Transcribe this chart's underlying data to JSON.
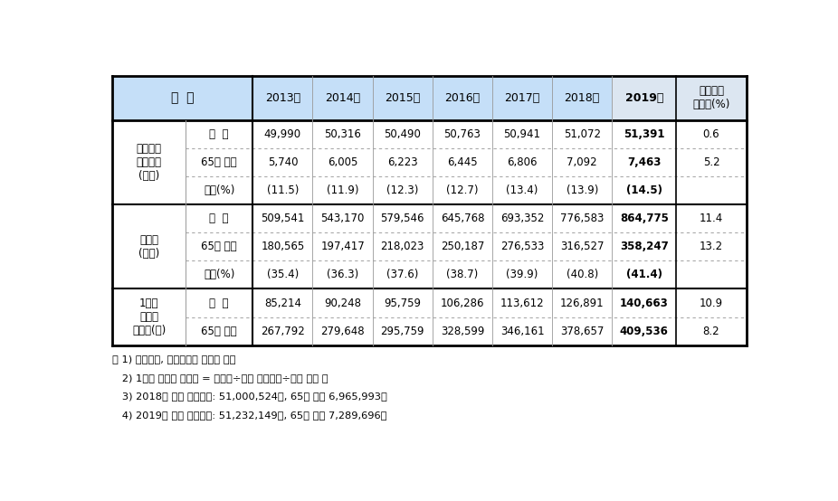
{
  "header_bg": "#c5dff8",
  "header_last_bg": "#dce6f1",
  "body_bg": "#ffffff",
  "thick_line_color": "#000000",
  "thin_line_color": "#aaaaaa",
  "dotted_line_color": "#888888",
  "col_headers": [
    "구  분",
    "",
    "2013년",
    "2014년",
    "2015년",
    "2016년",
    "2017년",
    "2018년",
    "2019년",
    "전년대비\n증감률(%)"
  ],
  "year_labels": [
    "2013년",
    "2014년",
    "2015년",
    "2016년",
    "2017년",
    "2018년",
    "2019년"
  ],
  "sections": [
    {
      "label": "건강보험\n적용인구\n(천명)",
      "rows": [
        {
          "sublabel": "전  체",
          "values": [
            "49,990",
            "50,316",
            "50,490",
            "50,763",
            "50,941",
            "51,072",
            "51,391",
            "0.6"
          ]
        },
        {
          "sublabel": "65세 이상",
          "values": [
            "5,740",
            "6,005",
            "6,223",
            "6,445",
            "6,806",
            "7,092",
            "7,463",
            "5.2"
          ]
        },
        {
          "sublabel": "비율(%)",
          "values": [
            "(11.5)",
            "(11.9)",
            "(12.3)",
            "(12.7)",
            "(13.4)",
            "(13.9)",
            "(14.5)",
            ""
          ]
        }
      ]
    },
    {
      "label": "진료비\n(억원)",
      "rows": [
        {
          "sublabel": "전  체",
          "values": [
            "509,541",
            "543,170",
            "579,546",
            "645,768",
            "693,352",
            "776,583",
            "864,775",
            "11.4"
          ]
        },
        {
          "sublabel": "65세 이상",
          "values": [
            "180,565",
            "197,417",
            "218,023",
            "250,187",
            "276,533",
            "316,527",
            "358,247",
            "13.2"
          ]
        },
        {
          "sublabel": "비율(%)",
          "values": [
            "(35.4)",
            "(36.3)",
            "(37.6)",
            "(38.7)",
            "(39.9)",
            "(40.8)",
            "(41.4)",
            ""
          ]
        }
      ]
    },
    {
      "label": "1인당\n월평균\n진료비(원)",
      "rows": [
        {
          "sublabel": "전  체",
          "values": [
            "85,214",
            "90,248",
            "95,759",
            "106,286",
            "113,612",
            "126,891",
            "140,663",
            "10.9"
          ]
        },
        {
          "sublabel": "65세 이상",
          "values": [
            "267,792",
            "279,648",
            "295,759",
            "328,599",
            "346,161",
            "378,657",
            "409,536",
            "8.2"
          ]
        }
      ]
    }
  ],
  "footnotes": [
    "주 1) 지급기준, 적용인구는 연도말 기준",
    "   2) 1인당 월평균 진료비 = 진료비÷평균 적용인구÷해당 개월 수",
    "   3) 2018년 평균 적용인구: 51,000,524명, 65세 이상 6,965,993명",
    "   4) 2019년 평균 적용인구: 51,232,149명, 65세 이상 7,289,696명"
  ]
}
